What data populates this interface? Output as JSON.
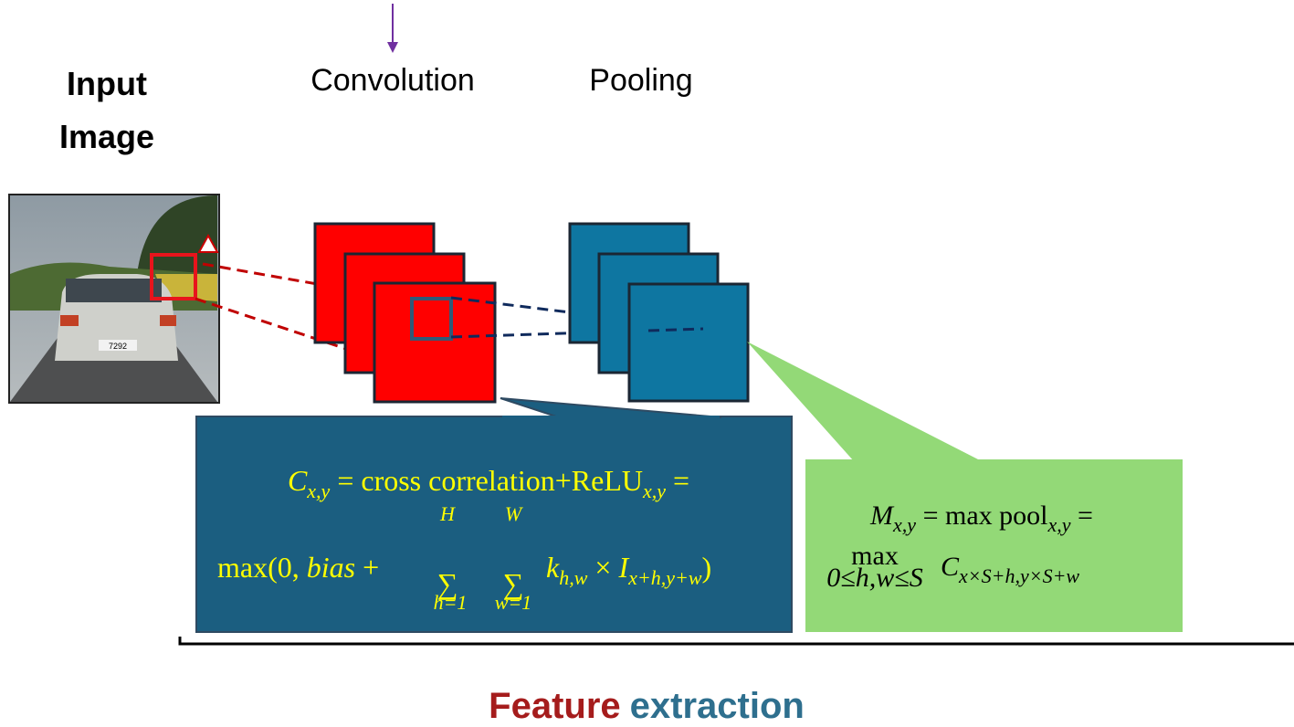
{
  "labels": {
    "input_image": [
      "Input",
      "Image"
    ],
    "convolution": "Convolution",
    "pooling": "Pooling",
    "plate": "7292"
  },
  "conv_formula": {
    "line1": [
      "C",
      "x,y",
      " = cross correlation+ReLU",
      "x,y",
      " ="
    ],
    "line2": [
      "max(0, ",
      "bias",
      " + "
    ],
    "sum_h": {
      "upper": "H",
      "symbol": "∑",
      "lower": "h=1"
    },
    "sum_w": {
      "upper": "W",
      "symbol": "∑",
      "lower": "w=1"
    },
    "term": [
      "k",
      "h,w",
      " × ",
      "I",
      "x+h,y+w",
      ")"
    ]
  },
  "pool_formula": {
    "line1": [
      "M",
      "x,y",
      " = max pool",
      "x,y",
      " ="
    ],
    "line2": [
      "max",
      "0≤h,w≤S",
      "C",
      "x×S+h,y×S+w"
    ]
  },
  "footer": {
    "feature": "Feature",
    "extraction": "extraction"
  }
}
